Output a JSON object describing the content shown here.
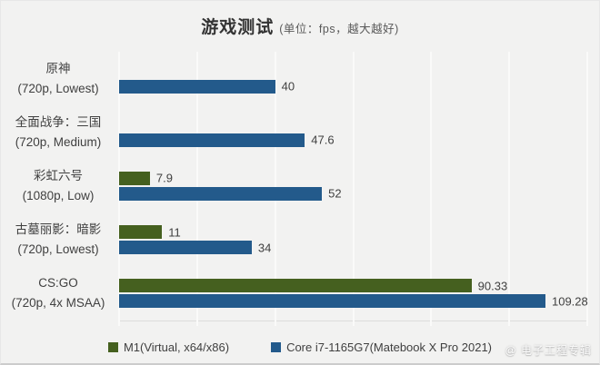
{
  "title": {
    "main": "游戏测试",
    "subtitle": "(单位：fps，越大越好)"
  },
  "chart_data": {
    "type": "bar",
    "orientation": "horizontal",
    "title": "游戏测试",
    "subtitle": "(单位：fps，越大越好)",
    "unit": "fps",
    "xlabel": "",
    "ylabel": "",
    "xlim": [
      0,
      120
    ],
    "gridline_step": 20,
    "grid": true,
    "legend_position": "bottom",
    "categories": [
      {
        "line1": "原神",
        "line2": "(720p, Lowest)"
      },
      {
        "line1": "全面战争：三国",
        "line2": "(720p, Medium)"
      },
      {
        "line1": "彩虹六号",
        "line2": "(1080p, Low)"
      },
      {
        "line1": "古墓丽影：暗影",
        "line2": "(720p, Lowest)"
      },
      {
        "line1": "CS:GO",
        "line2": "(720p, 4x MSAA)"
      }
    ],
    "series": [
      {
        "name": "M1(Virtual, x64/x86)",
        "color": "#45601f",
        "values": [
          null,
          null,
          7.9,
          11,
          90.33
        ]
      },
      {
        "name": "Core i7-1165G7(Matebook X Pro 2021)",
        "color": "#235a8b",
        "values": [
          40,
          47.6,
          52,
          34,
          109.28
        ]
      }
    ]
  },
  "watermark": "@ 电子工程专辑",
  "colors": {
    "background": "#f2f2f1",
    "grid": "#fafaf9",
    "text": "#404040",
    "subtitle_text": "#595959"
  }
}
